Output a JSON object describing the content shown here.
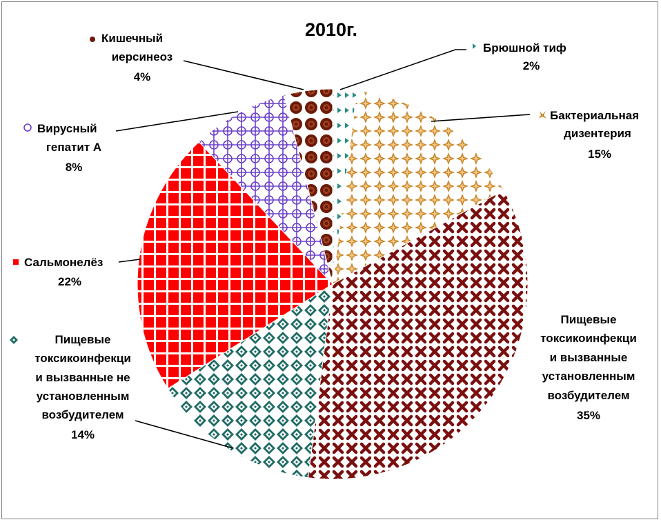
{
  "chart_data": {
    "type": "pie",
    "title": "2010г.",
    "start_angle_deg": 0,
    "direction": "clockwise",
    "slices": [
      {
        "label_lines": [
          "Брюшной тиф"
        ],
        "value_label": "2%",
        "value": 2,
        "color": "#2a8a86",
        "pattern": "triangles"
      },
      {
        "label_lines": [
          "Бактериальная",
          "дизентерия"
        ],
        "value_label": "15%",
        "value": 15,
        "color": "#c8862a",
        "pattern": "stars"
      },
      {
        "label_lines": [
          "Пищевые",
          "токсикоинфекци",
          "и вызванные",
          "установленным",
          "возбудителем"
        ],
        "value_label": "35%",
        "value": 35,
        "color": "#7a0f0f",
        "pattern": "crosses"
      },
      {
        "label_lines": [
          "Пищевые",
          "токсикоинфекци",
          "и вызванные не",
          "установленным",
          "возбудителем"
        ],
        "value_label": "14%",
        "value": 14,
        "color": "#1f6b64",
        "pattern": "diamonds"
      },
      {
        "label_lines": [
          "Сальмонелёз"
        ],
        "value_label": "22%",
        "value": 22,
        "color": "#ff0000",
        "pattern": "grid"
      },
      {
        "label_lines": [
          "Вирусный",
          "гепатит А"
        ],
        "value_label": "8%",
        "value": 8,
        "color": "#6a3fc8",
        "pattern": "circles"
      },
      {
        "label_lines": [
          "Кишечный",
          "иерсинеоз"
        ],
        "value_label": "4%",
        "value": 4,
        "color": "#6b1a0a",
        "pattern": "dots"
      }
    ]
  }
}
